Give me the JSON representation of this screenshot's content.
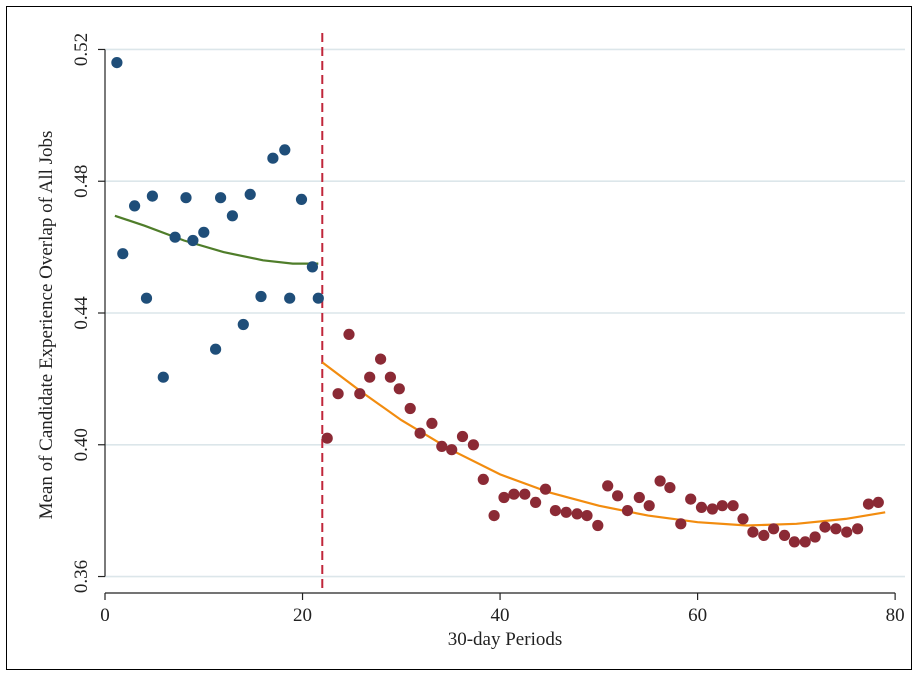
{
  "chart_data": {
    "type": "scatter",
    "title": "",
    "xlabel": "30-day Periods",
    "ylabel": "Mean of Candidate Experience Overlap of All Jobs",
    "xlim": [
      0,
      81
    ],
    "ylim": [
      0.355,
      0.525
    ],
    "x_ticks": [
      0,
      20,
      40,
      60,
      80
    ],
    "x_tick_labels": [
      "0",
      "20",
      "40",
      "60",
      "80"
    ],
    "y_ticks": [
      0.36,
      0.4,
      0.44,
      0.48,
      0.52
    ],
    "y_tick_labels": [
      "0.36",
      "0.40",
      "0.44",
      "0.48",
      "0.52"
    ],
    "grid": "horizontal",
    "cutoff_x": 22,
    "colors": {
      "before_points": "#1f4e79",
      "after_points": "#8b2a35",
      "before_fit": "#4f7d2a",
      "after_fit": "#f28c0f",
      "cutoff_line": "#c0263a",
      "grid": "#dce6ea"
    },
    "series": [
      {
        "key": "before",
        "x": [
          1.2,
          1.8,
          3,
          4.2,
          4.8,
          5.9,
          7.1,
          8.2,
          8.9,
          10,
          11.2,
          11.7,
          12.9,
          14,
          14.7,
          15.8,
          17,
          18.2,
          18.7,
          19.9,
          21,
          21.6
        ],
        "y": [
          0.516,
          0.458,
          0.4725,
          0.4445,
          0.4755,
          0.4205,
          0.463,
          0.475,
          0.462,
          0.4645,
          0.429,
          0.475,
          0.4695,
          0.4365,
          0.476,
          0.445,
          0.487,
          0.4895,
          0.4445,
          0.4745,
          0.454,
          0.4445
        ]
      },
      {
        "key": "after",
        "x": [
          22.5,
          23.6,
          24.7,
          25.8,
          26.8,
          27.9,
          28.9,
          29.8,
          30.9,
          31.9,
          33.1,
          34.1,
          35.1,
          36.2,
          37.3,
          38.3,
          39.4,
          40.4,
          41.4,
          42.5,
          43.6,
          44.6,
          45.6,
          46.7,
          47.8,
          48.8,
          49.9,
          50.9,
          51.9,
          52.9,
          54.1,
          55.1,
          56.2,
          57.2,
          58.3,
          59.3,
          60.4,
          61.5,
          62.5,
          63.6,
          64.6,
          65.6,
          66.7,
          67.7,
          68.8,
          69.8,
          70.9,
          71.9,
          72.9,
          74,
          75.1,
          76.2,
          77.3,
          78.3
        ],
        "y": [
          0.402,
          0.4155,
          0.4335,
          0.4155,
          0.4205,
          0.426,
          0.4205,
          0.417,
          0.411,
          0.4035,
          0.4065,
          0.3995,
          0.3985,
          0.4025,
          0.4,
          0.3895,
          0.3785,
          0.384,
          0.385,
          0.385,
          0.3825,
          0.3865,
          0.38,
          0.3795,
          0.379,
          0.3785,
          0.3755,
          0.3875,
          0.3845,
          0.38,
          0.384,
          0.3815,
          0.389,
          0.387,
          0.376,
          0.3835,
          0.381,
          0.3805,
          0.3815,
          0.3815,
          0.3775,
          0.3735,
          0.3725,
          0.3745,
          0.3725,
          0.3705,
          0.3705,
          0.372,
          0.375,
          0.3745,
          0.3735,
          0.3745,
          0.382,
          0.3825
        ]
      }
    ],
    "fit_lines": [
      {
        "key": "before_fit",
        "x": [
          1,
          4,
          8,
          12,
          16,
          19,
          21.6
        ],
        "y": [
          0.4695,
          0.4665,
          0.462,
          0.4585,
          0.456,
          0.455,
          0.455
        ]
      },
      {
        "key": "after_fit",
        "x": [
          22,
          26,
          30,
          35,
          40,
          45,
          50,
          55,
          60,
          65,
          70,
          75,
          79
        ],
        "y": [
          0.425,
          0.416,
          0.4075,
          0.3985,
          0.391,
          0.3855,
          0.3815,
          0.3785,
          0.3765,
          0.3755,
          0.376,
          0.3775,
          0.3795
        ]
      }
    ]
  }
}
